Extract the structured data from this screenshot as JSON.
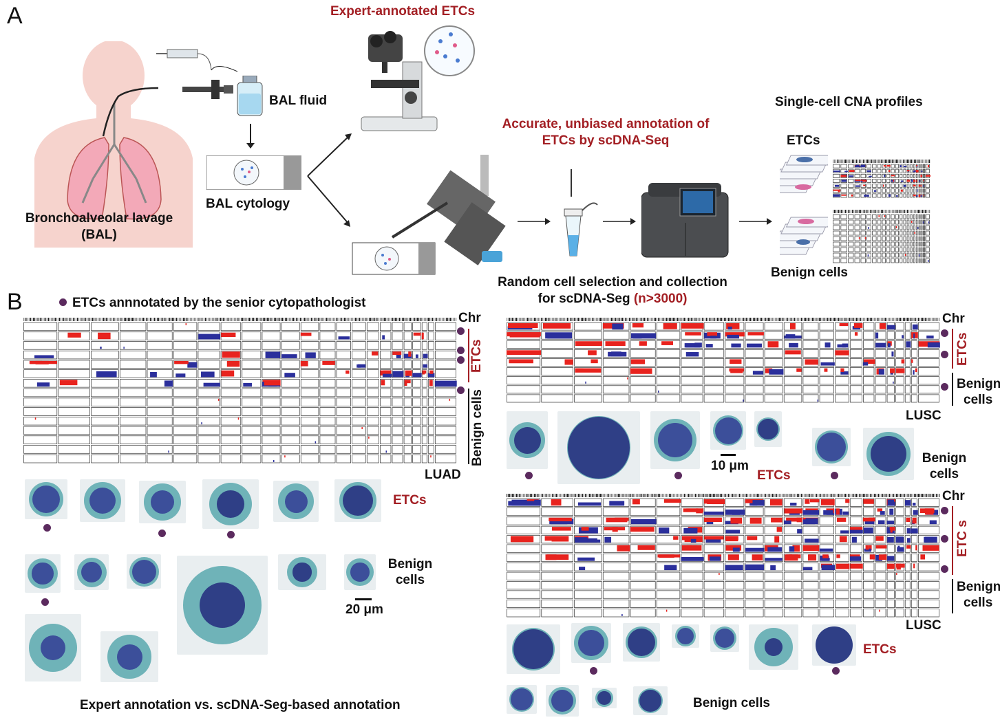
{
  "panel_a": {
    "letter": "A",
    "bal_label_line1": "Bronchoalveolar lavage",
    "bal_label_line2": "(BAL)",
    "bal_fluid": "BAL fluid",
    "bal_cytology": "BAL cytology",
    "expert_title": "Expert-annotated ETCs",
    "accurate_line1": "Accurate, unbiased annotation of",
    "accurate_line2": "ETCs by scDNA-Seq",
    "random_line1": "Random cell selection and collection",
    "random_line2_prefix": "for scDNA-Seg ",
    "random_line2_n": "(n>3000)",
    "cna_title": "Single-cell CNA profiles",
    "cna_etcs": "ETCs",
    "cna_benign": "Benign cells"
  },
  "panel_b": {
    "letter": "B",
    "legend_text": "ETCs annnotated by the senior cytopathologist",
    "chr": "Chr",
    "luad": {
      "tag": "LUAD",
      "etcs_label": "ETCs",
      "benign_label": "Benign cells",
      "img_etcs": "ETCs",
      "img_benign_line1": "Benign",
      "img_benign_line2": "cells",
      "scale": "20 μm"
    },
    "lusc1": {
      "tag": "LUSC",
      "etcs_label": "ETCs",
      "benign_line1": "Benign",
      "benign_line2": "cells",
      "img_etcs": "ETCs",
      "img_benign_line1": "Benign",
      "img_benign_line2": "cells",
      "scale": "10 μm"
    },
    "lusc2": {
      "tag": "LUSC",
      "etcs_label": "ETC s",
      "benign_line1": "Benign",
      "benign_line2": "cells",
      "img_etcs": "ETCs",
      "img_benign": "Benign cells"
    },
    "footer": "Expert annotation vs. scDNA-Seg-based annotation"
  },
  "colors": {
    "accent_red": "#a31f24",
    "gain": "#e8231e",
    "loss": "#2b2f9c",
    "dot": "#5b2a5e",
    "stain_blue": "#3c4f9a",
    "stain_teal": "#6fb3b8"
  }
}
